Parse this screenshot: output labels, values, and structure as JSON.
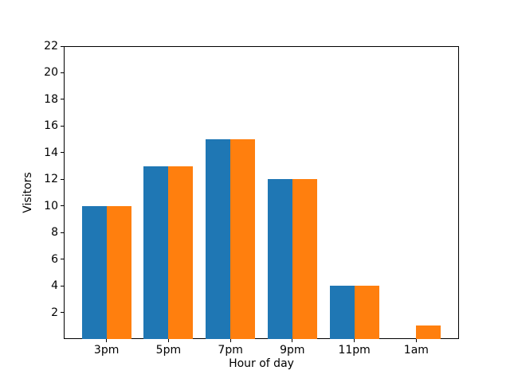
{
  "figure": {
    "background": "#ffffff",
    "axis_color": "#000000"
  },
  "chart_data": {
    "type": "bar",
    "xlabel": "Hour of day",
    "ylabel": "Visitors",
    "categories": [
      "3pm",
      "5pm",
      "7pm",
      "9pm",
      "11pm",
      "1am"
    ],
    "series": [
      {
        "name": "blue",
        "color": "#1f77b4",
        "values": [
          10,
          13,
          15,
          12,
          4,
          0
        ]
      },
      {
        "name": "orange",
        "color": "#ff7f0e",
        "values": [
          10,
          13,
          15,
          12,
          4,
          1
        ]
      }
    ],
    "ylim": [
      0,
      22
    ],
    "yticks": [
      2,
      4,
      6,
      8,
      10,
      12,
      14,
      16,
      18,
      20,
      22
    ],
    "grid": false,
    "legend": "none",
    "bar_width_fraction": 0.4
  }
}
